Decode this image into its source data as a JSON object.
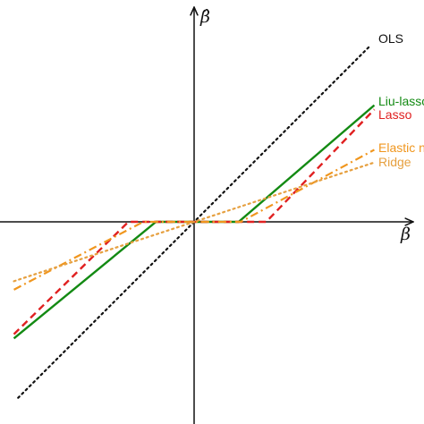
{
  "chart_data": {
    "type": "line",
    "title": "",
    "xlabel": "β",
    "ylabel": "β̂",
    "xlim": [
      -1,
      1
    ],
    "ylim": [
      -1,
      1
    ],
    "grid": false,
    "legend": "right",
    "series": [
      {
        "name": "OLS",
        "color": "#111111",
        "dash": "dotted",
        "x": [
          -0.83,
          0.83
        ],
        "y": [
          -0.83,
          0.83
        ]
      },
      {
        "name": "Liu-lasso",
        "color": "#138a13",
        "dash": "solid",
        "x": [
          -0.85,
          -0.18,
          0.21,
          0.85
        ],
        "y": [
          -0.55,
          0.0,
          0.0,
          0.55
        ]
      },
      {
        "name": "Lasso",
        "color": "#e02020",
        "dash": "dashed",
        "x": [
          -0.85,
          -0.31,
          0.34,
          0.85
        ],
        "y": [
          -0.53,
          0.0,
          0.0,
          0.53
        ]
      },
      {
        "name": "Elastic net",
        "color": "#f0961e",
        "dash": "dashdot",
        "x": [
          -0.85,
          -0.24,
          0.22,
          0.85
        ],
        "y": [
          -0.32,
          0.0,
          0.0,
          0.34
        ]
      },
      {
        "name": "Ridge",
        "color": "#e6a040",
        "dash": "dotted",
        "x": [
          -0.85,
          0.85
        ],
        "y": [
          -0.28,
          0.28
        ]
      }
    ]
  }
}
